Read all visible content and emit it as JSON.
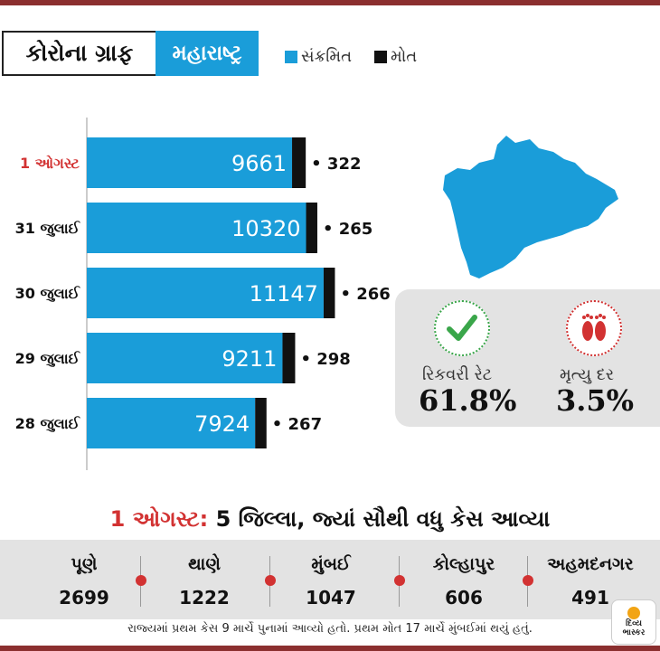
{
  "header": {
    "title": "કોરોના ગ્રાફ",
    "state": "મહારાષ્ટ્ર",
    "legend": [
      {
        "label": "સંક્રમિત",
        "color": "#1a9dd9"
      },
      {
        "label": "મોત",
        "color": "#111111"
      }
    ]
  },
  "chart_data": {
    "type": "bar",
    "orientation": "horizontal",
    "stacked": true,
    "categories": [
      "1 ઓગસ્ટ",
      "31 જુલાઈ",
      "30 જુલાઈ",
      "29 જુલાઈ",
      "28 જુલાઈ"
    ],
    "highlight_category": "1 ઓગસ્ટ",
    "highlight_color": "#d23232",
    "series": [
      {
        "name": "સંક્રમિત",
        "color": "#1a9dd9",
        "values": [
          9661,
          10320,
          11147,
          9211,
          7924
        ]
      },
      {
        "name": "મોત",
        "color": "#111111",
        "values": [
          322,
          265,
          266,
          298,
          267
        ]
      }
    ]
  },
  "stats": {
    "recovery": {
      "label": "રિકવરી રેટ",
      "value": "61.8%",
      "icon": "checkmark-icon",
      "color": "#3aa64a"
    },
    "death": {
      "label": "મૃત્યુ દર",
      "value": "3.5%",
      "icon": "footprints-icon",
      "color": "#d23232"
    }
  },
  "districts_title": {
    "date": "1 ઓગસ્ટ:",
    "text": "5 જિલ્લા, જ્યાં સૌથી વધુ કેસ આવ્યા"
  },
  "districts": [
    {
      "name": "પૂણે",
      "value": "2699"
    },
    {
      "name": "થાણે",
      "value": "1222"
    },
    {
      "name": "મુંબઈ",
      "value": "1047"
    },
    {
      "name": "કોલ્હાપુર",
      "value": "606"
    },
    {
      "name": "અહમદનગર",
      "value": "491"
    }
  ],
  "footnote": "રાજ્યમાં પ્રથમ કેસ 9 માર્ચે પુનામાં આવ્યો હતો. પ્રથમ મોત 17 માર્ચે મુંબઈમાં થયું હતું.",
  "logo": {
    "line1": "દિવ્ય",
    "line2": "ભાસ્કર"
  }
}
